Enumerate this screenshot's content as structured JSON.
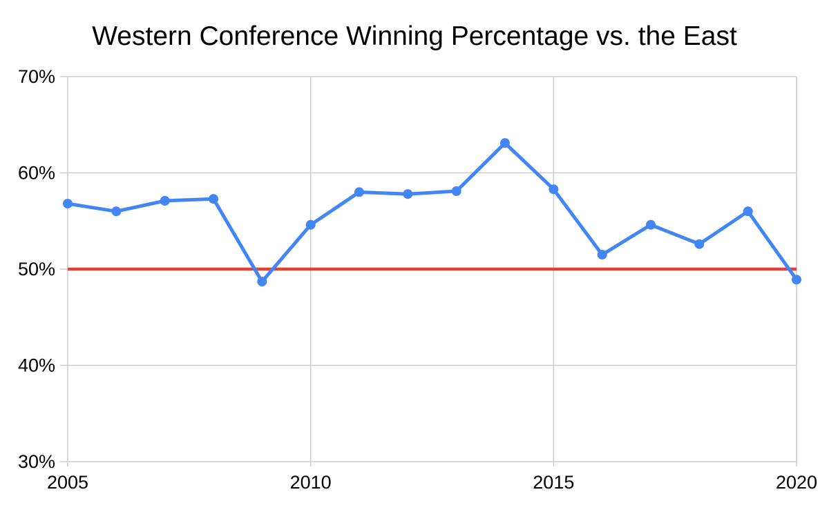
{
  "chart_data": {
    "type": "line",
    "title": "Western Conference Winning Percentage vs. the East",
    "x": [
      2005,
      2006,
      2007,
      2008,
      2009,
      2010,
      2011,
      2012,
      2013,
      2014,
      2015,
      2016,
      2017,
      2018,
      2019,
      2020
    ],
    "series": [
      {
        "name": "Western Conference winning percentage",
        "color": "#4285f4",
        "marker": "circle",
        "values": [
          56.8,
          56.0,
          57.1,
          57.3,
          48.7,
          54.6,
          58.0,
          57.8,
          58.1,
          63.1,
          58.3,
          51.5,
          54.6,
          52.6,
          56.0,
          48.9
        ]
      }
    ],
    "reference_line": {
      "value": 50,
      "color": "#db4437"
    },
    "xlim": [
      2005,
      2020
    ],
    "ylim": [
      30,
      70
    ],
    "x_ticks": [
      {
        "value": 2005,
        "label": "2005"
      },
      {
        "value": 2010,
        "label": "2010"
      },
      {
        "value": 2015,
        "label": "2015"
      },
      {
        "value": 2020,
        "label": "2020"
      }
    ],
    "y_ticks": [
      {
        "value": 70,
        "label": "70%"
      },
      {
        "value": 60,
        "label": "60%"
      },
      {
        "value": 50,
        "label": "50%"
      },
      {
        "value": 40,
        "label": "40%"
      },
      {
        "value": 30,
        "label": "30%"
      }
    ],
    "grid": true,
    "grid_color": "#cccccc",
    "background": "#ffffff",
    "text_color": "#000000",
    "legend_position": "none",
    "xlabel": "",
    "ylabel": ""
  }
}
